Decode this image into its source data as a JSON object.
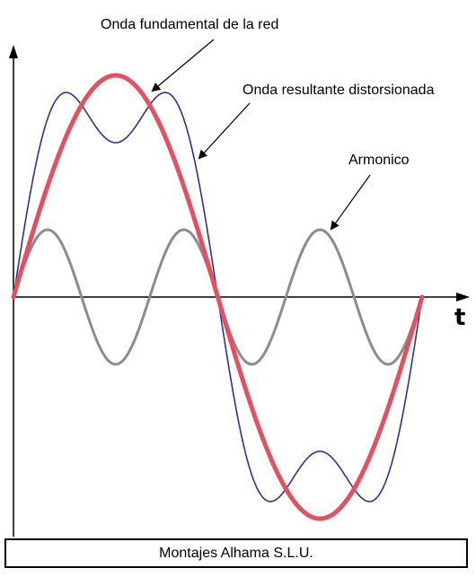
{
  "labels": {
    "fundamental": "Onda fundamental de la red",
    "distorted": "Onda resultante distorsionada",
    "harmonic": "Armonico",
    "time_axis": "t"
  },
  "footer": {
    "company": "Montajes Alhama S.L.U."
  },
  "colors": {
    "fundamental": "#e5505e",
    "distorted": "#2e3192",
    "harmonic": "#8c8c8c",
    "axis": "#000000"
  }
}
